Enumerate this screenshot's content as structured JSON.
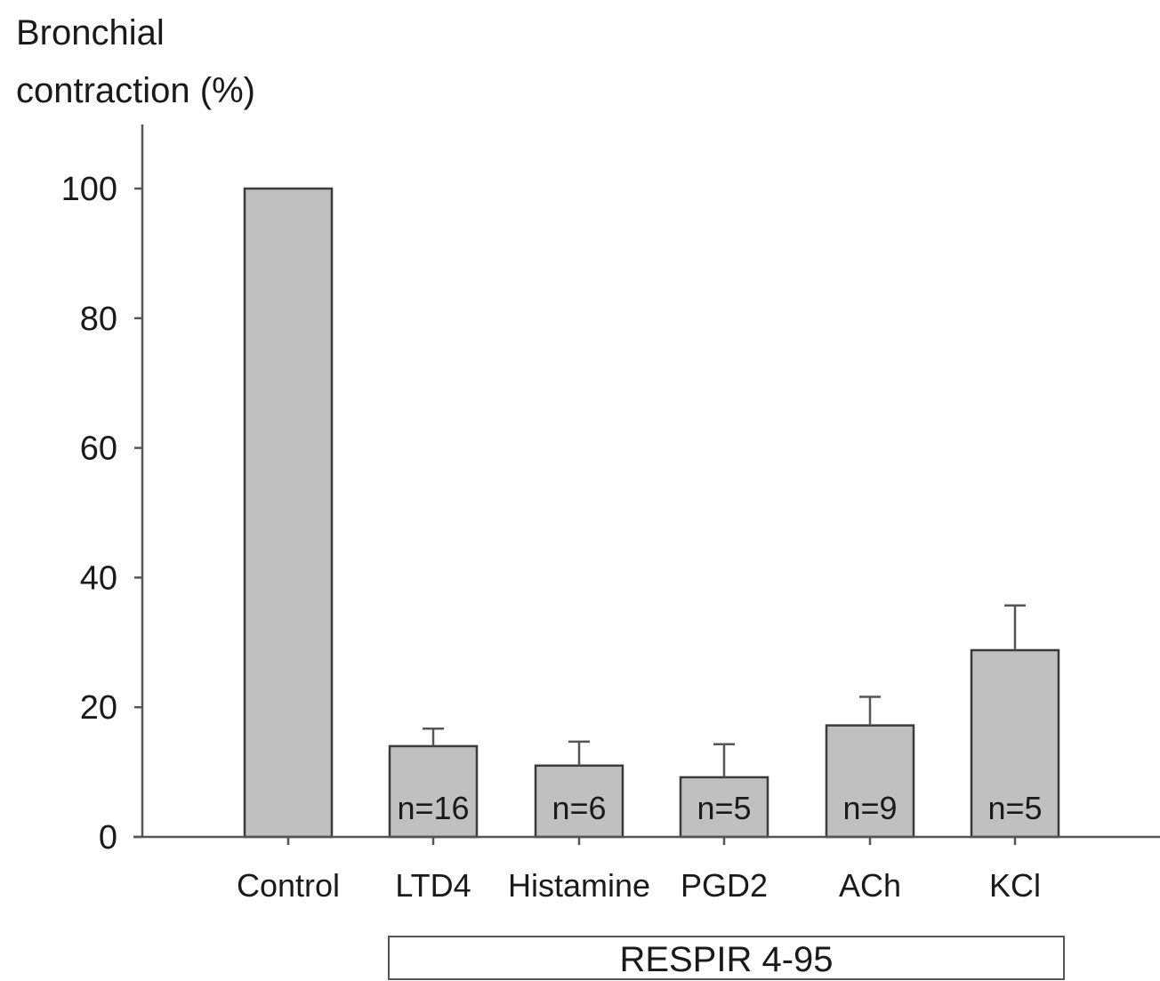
{
  "chart_data": {
    "type": "bar",
    "ylabel_lines": [
      "Bronchial",
      "contraction (%)"
    ],
    "categories": [
      "Control",
      "LTD4",
      "Histamine",
      "PGD2",
      "ACh",
      "KCl"
    ],
    "values": [
      100,
      14,
      11,
      9.2,
      17.2,
      28.8
    ],
    "error_upper": [
      null,
      2.7,
      3.7,
      5.1,
      4.4,
      6.9
    ],
    "n_labels": [
      "",
      "n=16",
      "n=6",
      "n=5",
      "n=9",
      "n=5"
    ],
    "ylim": [
      0,
      100
    ],
    "yticks": [
      "0",
      "20",
      "40",
      "60",
      "80",
      "100"
    ],
    "group_label": "RESPIR 4-95",
    "group_span": [
      "LTD4",
      "KCl"
    ],
    "grid": false,
    "legend": "none",
    "colors": {
      "bar": "#c0c0c0",
      "bar_edge": "#3a3a3a",
      "axis": "#555555",
      "text": "#1a1a1a"
    }
  }
}
